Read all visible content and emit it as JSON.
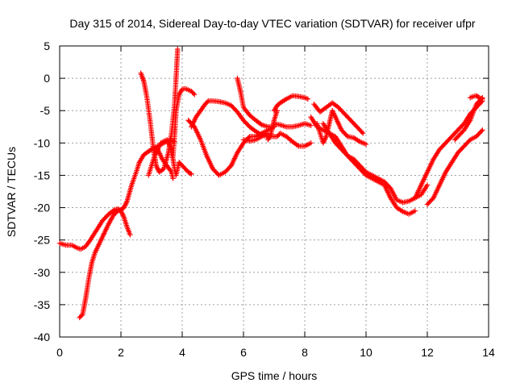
{
  "chart_data": {
    "type": "scatter",
    "title": "Day 315 of 2014, Sidereal Day-to-day VTEC variation (SDTVAR) for receiver ufpr",
    "xlabel": "GPS time / hours",
    "ylabel": "SDTVAR / TECUs",
    "xlim": [
      0,
      14
    ],
    "ylim": [
      -40,
      5
    ],
    "xticks": [
      0,
      2,
      4,
      6,
      8,
      10,
      12,
      14
    ],
    "yticks": [
      5,
      0,
      -5,
      -10,
      -15,
      -20,
      -25,
      -30,
      -35,
      -40
    ],
    "grid": true,
    "marker": "plus",
    "color": "#ff0000",
    "series": [
      {
        "x": [
          0.0,
          0.2,
          0.4,
          0.6,
          0.7,
          0.85,
          1.0,
          1.2,
          1.4,
          1.6,
          1.8,
          1.9,
          2.0,
          2.1,
          2.2,
          2.3
        ],
        "y": [
          -25.5,
          -25.8,
          -25.8,
          -26.3,
          -26.4,
          -26.0,
          -25.0,
          -23.5,
          -22.0,
          -21.0,
          -20.3,
          -20.2,
          -20.5,
          -21.5,
          -23.0,
          -24.2
        ]
      },
      {
        "x": [
          0.65,
          0.75,
          0.85,
          0.95,
          1.05,
          1.15,
          1.3,
          1.45,
          1.6,
          1.75,
          1.9,
          2.0,
          2.1,
          2.2,
          2.35,
          2.5,
          2.6,
          2.75,
          2.9,
          3.0,
          3.2,
          3.4,
          3.6,
          3.75
        ],
        "y": [
          -37.0,
          -36.5,
          -34.0,
          -31.0,
          -28.5,
          -27.0,
          -25.5,
          -24.0,
          -22.5,
          -21.2,
          -20.5,
          -20.3,
          -20.0,
          -19.0,
          -16.5,
          -14.5,
          -13.0,
          -11.8,
          -11.3,
          -11.0,
          -10.5,
          -10.0,
          -9.5,
          -9.8
        ]
      },
      {
        "x": [
          2.65,
          2.75,
          2.85,
          2.95,
          3.05,
          3.15,
          3.25,
          3.4,
          3.55,
          3.65,
          3.75,
          3.8,
          3.85
        ],
        "y": [
          0.8,
          -0.5,
          -3.0,
          -6.5,
          -10.5,
          -13.5,
          -14.5,
          -14.0,
          -11.5,
          -8.5,
          -4.0,
          0.0,
          4.5
        ]
      },
      {
        "x": [
          2.9,
          3.0,
          3.1,
          3.3,
          3.5,
          3.6,
          3.7,
          3.75,
          3.8,
          3.9,
          4.0,
          4.1,
          4.2,
          4.3
        ],
        "y": [
          -15.0,
          -13.5,
          -12.0,
          -10.0,
          -9.5,
          -10.5,
          -12.5,
          -14.0,
          -15.0,
          -13.0,
          -13.5,
          -14.0,
          -14.5,
          -14.8
        ]
      },
      {
        "x": [
          3.7,
          3.75,
          3.8,
          3.9,
          4.0,
          4.1,
          4.2,
          4.3,
          4.4
        ],
        "y": [
          -12.0,
          -9.0,
          -5.0,
          -2.5,
          -1.7,
          -1.6,
          -1.8,
          -2.0,
          -2.5
        ]
      },
      {
        "x": [
          3.2,
          3.35,
          3.5,
          3.65,
          3.7
        ],
        "y": [
          -11.0,
          -12.5,
          -13.5,
          -14.5,
          -15.5
        ]
      },
      {
        "x": [
          4.2,
          4.3,
          4.4,
          4.6,
          4.8,
          5.0,
          5.2,
          5.4,
          5.6,
          5.8,
          6.0,
          6.2,
          6.4,
          6.6,
          6.8,
          7.0
        ],
        "y": [
          -6.5,
          -7.0,
          -7.5,
          -9.5,
          -12.0,
          -14.0,
          -15.0,
          -14.5,
          -13.5,
          -11.5,
          -10.0,
          -9.0,
          -9.0,
          -8.5,
          -8.0,
          -7.5
        ]
      },
      {
        "x": [
          4.3,
          4.45,
          4.6,
          4.75,
          4.85,
          5.0,
          5.2,
          5.4,
          5.6,
          5.8,
          6.0,
          6.2,
          6.4,
          6.6,
          6.8,
          7.0
        ],
        "y": [
          -7.5,
          -6.0,
          -5.0,
          -4.0,
          -3.5,
          -3.5,
          -3.6,
          -3.8,
          -4.2,
          -5.2,
          -6.5,
          -7.5,
          -8.2,
          -8.8,
          -9.0,
          -9.0
        ]
      },
      {
        "x": [
          5.8,
          5.9,
          6.0,
          6.2,
          6.4,
          6.6,
          6.8,
          7.0
        ],
        "y": [
          0.0,
          -2.0,
          -4.5,
          -5.7,
          -6.5,
          -7.2,
          -7.5,
          -7.5
        ]
      },
      {
        "x": [
          6.8,
          6.9,
          7.0,
          7.1
        ],
        "y": [
          -9.5,
          -8.5,
          -6.5,
          -5.0
        ]
      },
      {
        "x": [
          6.0,
          6.2,
          6.4,
          6.6,
          6.8
        ],
        "y": [
          -9.5,
          -9.7,
          -9.5,
          -9.0,
          -8.5
        ]
      },
      {
        "x": [
          7.0,
          7.2,
          7.4,
          7.6,
          7.8,
          8.0,
          8.2
        ],
        "y": [
          -7.0,
          -7.2,
          -7.5,
          -7.5,
          -7.3,
          -7.0,
          -7.3
        ]
      },
      {
        "x": [
          7.0,
          7.1,
          7.2,
          7.4,
          7.6,
          7.8,
          8.0,
          8.2
        ],
        "y": [
          -9.0,
          -9.0,
          -8.5,
          -9.0,
          -9.8,
          -10.5,
          -10.5,
          -10.0
        ]
      },
      {
        "x": [
          7.0,
          7.1,
          7.2,
          7.4,
          7.6,
          7.8,
          8.0,
          8.1
        ],
        "y": [
          -5.0,
          -4.2,
          -3.8,
          -3.2,
          -2.7,
          -2.8,
          -3.0,
          -3.2
        ]
      },
      {
        "x": [
          8.4,
          8.5,
          8.6,
          8.7,
          8.8,
          8.9,
          9.0,
          9.2,
          9.4,
          9.6,
          9.8,
          10.0
        ],
        "y": [
          -7.0,
          -8.5,
          -10.0,
          -9.0,
          -7.0,
          -5.0,
          -6.0,
          -8.0,
          -9.0,
          -9.2,
          -9.8,
          -10.2
        ]
      },
      {
        "x": [
          8.3,
          8.5,
          8.7,
          8.9,
          9.1,
          9.3,
          9.5,
          9.7,
          9.9
        ],
        "y": [
          -4.0,
          -5.2,
          -4.5,
          -3.8,
          -4.5,
          -5.5,
          -6.5,
          -7.5,
          -8.5
        ]
      },
      {
        "x": [
          8.2,
          8.4,
          8.6,
          8.8,
          9.0,
          9.2,
          9.4,
          9.6,
          9.8,
          10.0,
          10.2,
          10.4,
          10.6,
          10.8,
          11.0,
          11.2,
          11.4,
          11.6
        ],
        "y": [
          -6.0,
          -7.5,
          -8.0,
          -8.5,
          -9.0,
          -10.5,
          -12.0,
          -13.0,
          -14.0,
          -15.0,
          -15.5,
          -16.0,
          -16.5,
          -18.5,
          -20.0,
          -20.6,
          -21.0,
          -20.5
        ]
      },
      {
        "x": [
          8.6,
          8.8,
          9.0,
          9.2,
          9.4,
          9.6,
          9.8,
          10.0,
          10.2,
          10.4,
          10.6,
          10.8,
          11.0,
          11.2,
          11.4,
          11.6,
          11.8,
          12.0
        ],
        "y": [
          -7.0,
          -8.5,
          -10.0,
          -11.0,
          -12.0,
          -12.5,
          -13.5,
          -14.5,
          -15.0,
          -15.5,
          -16.0,
          -17.0,
          -18.8,
          -19.2,
          -19.0,
          -18.5,
          -18.0,
          -16.5
        ]
      },
      {
        "x": [
          12.0,
          12.2,
          12.4,
          12.6,
          12.8,
          13.0,
          13.2,
          13.4,
          13.6,
          13.8
        ],
        "y": [
          -19.5,
          -18.5,
          -16.5,
          -14.5,
          -13.0,
          -11.5,
          -10.5,
          -9.5,
          -9.0,
          -8.0
        ]
      },
      {
        "x": [
          11.6,
          11.8,
          12.0,
          12.2,
          12.4,
          12.6,
          12.8,
          13.0,
          13.2,
          13.4,
          13.6,
          13.8
        ],
        "y": [
          -18.5,
          -16.5,
          -14.5,
          -12.5,
          -11.0,
          -10.0,
          -9.0,
          -8.0,
          -7.0,
          -5.5,
          -4.5,
          -3.5
        ]
      },
      {
        "x": [
          12.9,
          13.0,
          13.2,
          13.4,
          13.6,
          13.8
        ],
        "y": [
          -9.5,
          -9.0,
          -8.0,
          -6.5,
          -4.0,
          -3.0
        ]
      },
      {
        "x": [
          13.4,
          13.5,
          13.6,
          13.7,
          13.8
        ],
        "y": [
          -3.0,
          -2.8,
          -2.7,
          -3.0,
          -3.2
        ]
      }
    ]
  }
}
